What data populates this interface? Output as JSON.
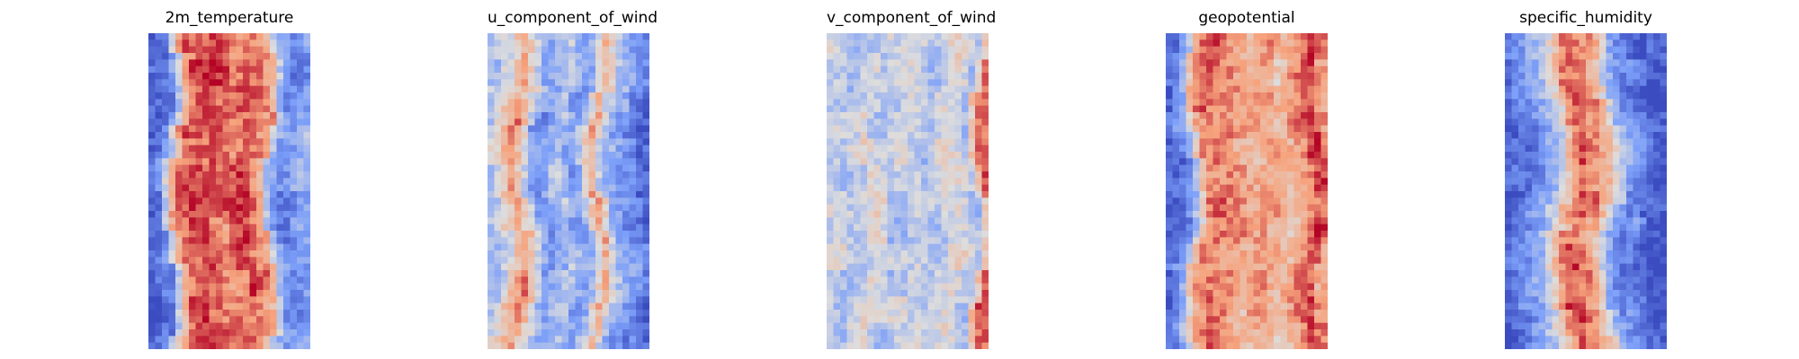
{
  "chart_data": [
    {
      "type": "heatmap",
      "title": "2m_temperature",
      "colormap": "coolwarm",
      "xlabel": "",
      "ylabel": "",
      "axes": "off",
      "rows": 48,
      "cols": 24,
      "profile": [
        0.05,
        0.1,
        0.2,
        0.45,
        0.7,
        0.85,
        0.88,
        0.9,
        0.9,
        0.88,
        0.85,
        0.8,
        0.82,
        0.85,
        0.88,
        0.85,
        0.8,
        0.7,
        0.4,
        0.25,
        0.2,
        0.2,
        0.25,
        0.3
      ]
    },
    {
      "type": "heatmap",
      "title": "u_component_of_wind",
      "colormap": "coolwarm",
      "xlabel": "",
      "ylabel": "",
      "axes": "off",
      "rows": 48,
      "cols": 24,
      "profile": [
        0.35,
        0.45,
        0.55,
        0.65,
        0.75,
        0.6,
        0.45,
        0.3,
        0.25,
        0.3,
        0.35,
        0.4,
        0.3,
        0.25,
        0.35,
        0.55,
        0.7,
        0.5,
        0.35,
        0.3,
        0.25,
        0.2,
        0.15,
        0.05
      ]
    },
    {
      "type": "heatmap",
      "title": "v_component_of_wind",
      "colormap": "coolwarm",
      "xlabel": "",
      "ylabel": "",
      "axes": "off",
      "rows": 48,
      "cols": 24,
      "profile": [
        0.45,
        0.45,
        0.42,
        0.4,
        0.42,
        0.45,
        0.5,
        0.48,
        0.42,
        0.4,
        0.42,
        0.45,
        0.48,
        0.45,
        0.42,
        0.4,
        0.42,
        0.48,
        0.52,
        0.5,
        0.45,
        0.4,
        0.6,
        0.85
      ]
    },
    {
      "type": "heatmap",
      "title": "geopotential",
      "colormap": "coolwarm",
      "xlabel": "",
      "ylabel": "",
      "axes": "off",
      "rows": 48,
      "cols": 24,
      "profile": [
        0.1,
        0.12,
        0.2,
        0.35,
        0.6,
        0.78,
        0.82,
        0.82,
        0.8,
        0.78,
        0.75,
        0.72,
        0.7,
        0.72,
        0.75,
        0.75,
        0.7,
        0.65,
        0.7,
        0.75,
        0.8,
        0.88,
        0.9,
        0.75
      ]
    },
    {
      "type": "heatmap",
      "title": "specific_humidity",
      "colormap": "coolwarm",
      "xlabel": "",
      "ylabel": "",
      "axes": "off",
      "rows": 48,
      "cols": 24,
      "profile": [
        0.05,
        0.1,
        0.15,
        0.2,
        0.25,
        0.3,
        0.35,
        0.45,
        0.6,
        0.75,
        0.85,
        0.85,
        0.8,
        0.75,
        0.65,
        0.5,
        0.35,
        0.25,
        0.2,
        0.18,
        0.12,
        0.08,
        0.05,
        0.05
      ]
    }
  ]
}
